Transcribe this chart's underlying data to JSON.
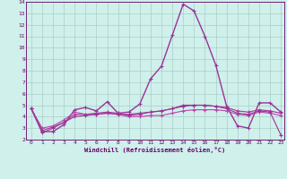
{
  "xlabel": "Windchill (Refroidissement éolien,°C)",
  "xlim": [
    -0.5,
    23.3
  ],
  "ylim": [
    2,
    14
  ],
  "yticks": [
    2,
    3,
    4,
    5,
    6,
    7,
    8,
    9,
    10,
    11,
    12,
    13,
    14
  ],
  "xticks": [
    0,
    1,
    2,
    3,
    4,
    5,
    6,
    7,
    8,
    9,
    10,
    11,
    12,
    13,
    14,
    15,
    16,
    17,
    18,
    19,
    20,
    21,
    22,
    23
  ],
  "bg_color": "#cff0eb",
  "grid_color": "#aacec8",
  "line_color_main": "#993399",
  "line_color_alt": "#bb44aa",
  "series": [
    [
      4.7,
      2.7,
      2.7,
      3.3,
      4.6,
      4.8,
      4.5,
      5.3,
      4.3,
      4.4,
      5.1,
      7.3,
      8.4,
      11.1,
      13.8,
      13.2,
      11.0,
      8.5,
      4.9,
      3.2,
      3.0,
      5.2,
      5.2,
      4.4
    ],
    [
      4.7,
      2.8,
      3.1,
      3.5,
      4.2,
      4.2,
      4.3,
      4.4,
      4.3,
      4.1,
      4.2,
      4.4,
      4.5,
      4.7,
      5.0,
      5.0,
      5.0,
      4.9,
      4.8,
      4.5,
      4.4,
      4.6,
      4.5,
      4.3
    ],
    [
      4.7,
      3.0,
      3.2,
      3.7,
      4.4,
      4.2,
      4.2,
      4.3,
      4.2,
      4.0,
      4.0,
      4.1,
      4.1,
      4.3,
      4.5,
      4.6,
      4.6,
      4.6,
      4.5,
      4.2,
      4.1,
      4.4,
      4.3,
      4.1
    ],
    [
      4.7,
      2.6,
      3.0,
      3.5,
      4.0,
      4.1,
      4.2,
      4.3,
      4.2,
      4.2,
      4.3,
      4.4,
      4.5,
      4.7,
      4.9,
      5.0,
      5.0,
      4.9,
      4.7,
      4.3,
      4.2,
      4.5,
      4.4,
      2.4
    ]
  ],
  "series_colors": [
    "#993399",
    "#aa3399",
    "#bb44aa",
    "#993399"
  ],
  "series_lw": [
    1.0,
    0.8,
    0.8,
    0.8
  ]
}
